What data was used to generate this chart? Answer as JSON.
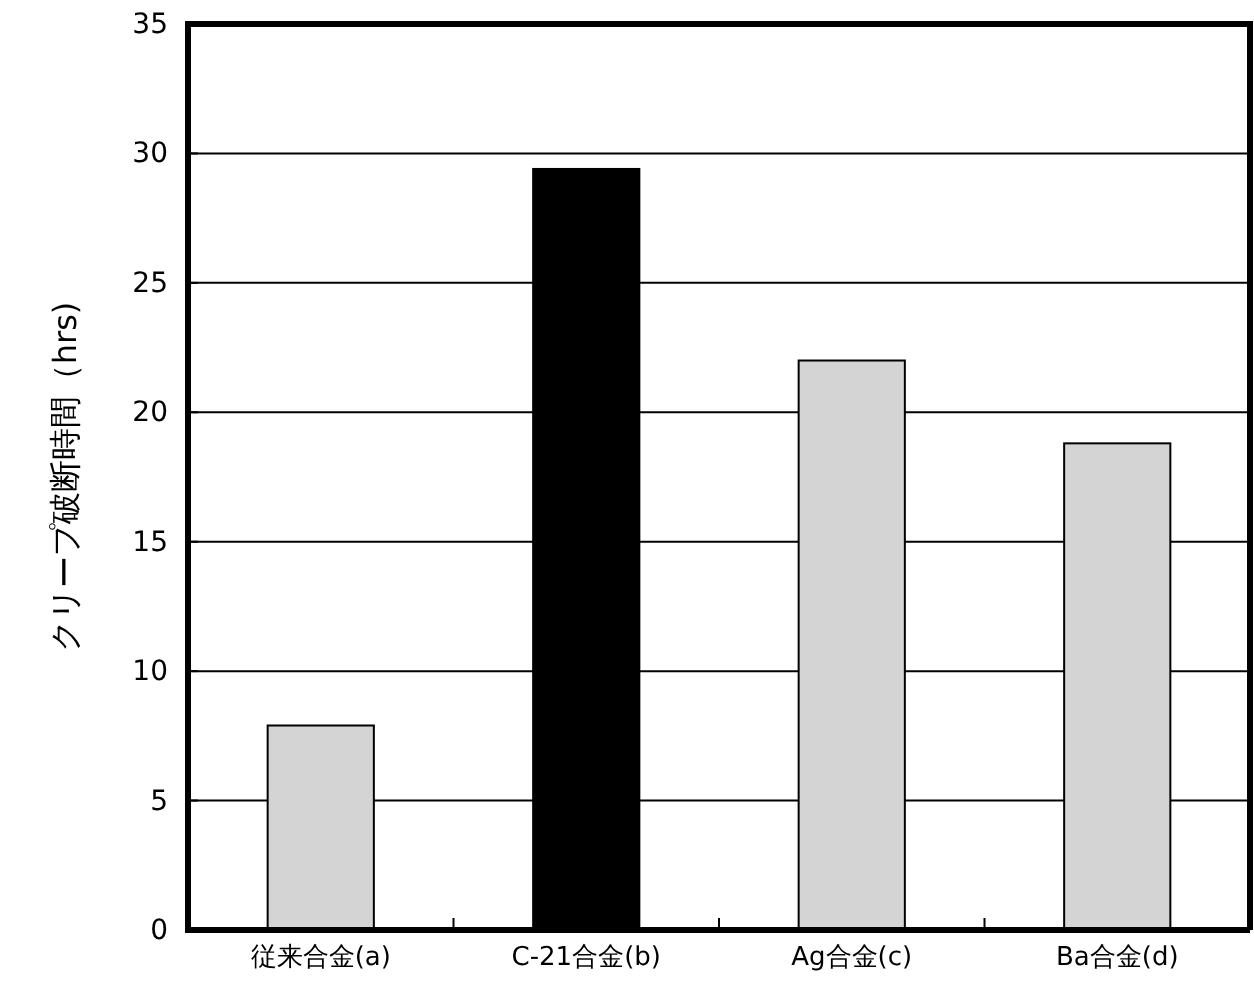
{
  "chart_data": {
    "type": "bar",
    "ylabel": "クリープ破断時間（hrs)",
    "categories": [
      "従来合金(a)",
      "C-21合金(b)",
      "Ag合金(c)",
      "Ba合金(d)"
    ],
    "values": [
      7.9,
      29.4,
      22.0,
      18.8
    ],
    "colors": [
      "#d4d4d4",
      "#000000",
      "#d4d4d4",
      "#d4d4d4"
    ],
    "ylim": [
      0,
      35
    ],
    "yticks": [
      0,
      5,
      10,
      15,
      20,
      25,
      30,
      35
    ],
    "grid": "y"
  }
}
